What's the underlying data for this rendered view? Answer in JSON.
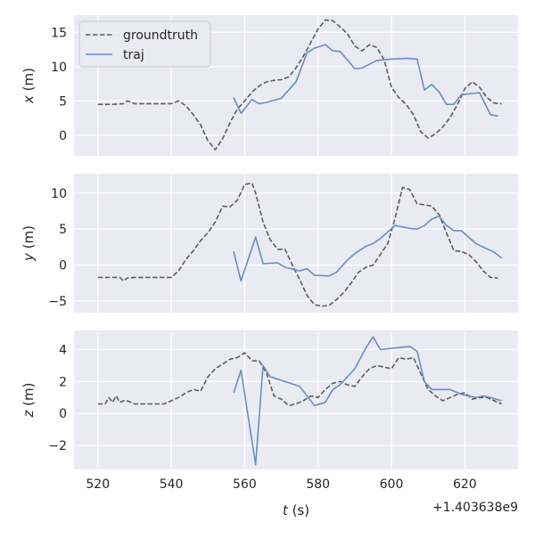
{
  "chart_data": [
    {
      "type": "line",
      "ylabel": "x (m)",
      "ylabel_var": "x",
      "ylabel_unit": " (m)",
      "ylim": [
        -3,
        17.5
      ],
      "yticks": [
        0,
        5,
        10,
        15
      ],
      "ytick_labels": [
        "0",
        "5",
        "10",
        "15"
      ],
      "legend": {
        "placement": "top-left",
        "entries": [
          "groundtruth",
          "traj"
        ]
      },
      "series": [
        {
          "name": "groundtruth",
          "style": "dashed",
          "color": "#5c5c5c",
          "x": [
            520,
            524,
            527,
            528,
            530,
            534,
            538,
            540,
            542,
            544,
            546,
            548,
            550,
            552,
            554,
            556,
            558,
            560,
            562,
            564,
            566,
            568,
            570,
            572,
            574,
            576,
            578,
            580,
            582,
            584,
            586,
            588,
            590,
            592,
            594,
            596,
            598,
            600,
            602,
            604,
            606,
            608,
            610,
            612,
            614,
            616,
            618,
            620,
            622,
            624,
            626,
            628,
            630
          ],
          "y": [
            4.5,
            4.5,
            4.6,
            5.0,
            4.6,
            4.6,
            4.6,
            4.6,
            5.0,
            4.3,
            3.0,
            1.5,
            -0.8,
            -2.1,
            -0.5,
            1.8,
            3.8,
            5.0,
            6.3,
            7.2,
            7.8,
            8.0,
            8.1,
            8.5,
            9.8,
            11.5,
            13.5,
            15.5,
            16.8,
            16.7,
            15.8,
            14.8,
            13.0,
            12.3,
            13.2,
            12.8,
            11.0,
            7.0,
            5.5,
            4.5,
            3.0,
            0.5,
            -0.4,
            0.2,
            1.2,
            2.6,
            4.5,
            6.8,
            7.8,
            7.0,
            5.5,
            4.7,
            4.6
          ]
        },
        {
          "name": "traj",
          "style": "solid",
          "color": "#6a8cc7",
          "x": [
            557,
            559,
            562,
            564,
            566,
            570,
            574,
            577,
            579,
            582,
            584,
            586,
            588,
            590,
            592,
            596,
            598,
            600,
            604,
            607,
            609,
            611,
            613,
            615,
            617,
            619,
            622,
            624,
            627,
            629
          ],
          "y": [
            5.5,
            3.2,
            5.2,
            4.6,
            4.8,
            5.4,
            7.8,
            12.0,
            12.7,
            13.2,
            12.3,
            12.2,
            11.0,
            9.7,
            9.8,
            10.9,
            11.0,
            11.1,
            11.2,
            11.1,
            6.6,
            7.4,
            6.3,
            4.5,
            4.5,
            5.9,
            6.1,
            6.2,
            3.0,
            2.8
          ]
        }
      ]
    },
    {
      "type": "line",
      "ylabel": "y (m)",
      "ylabel_var": "y",
      "ylabel_unit": " (m)",
      "ylim": [
        -6.6,
        12.7
      ],
      "yticks": [
        -5,
        0,
        5,
        10
      ],
      "ytick_labels": [
        "−5",
        "0",
        "5",
        "10"
      ],
      "series": [
        {
          "name": "groundtruth",
          "style": "dashed",
          "color": "#5c5c5c",
          "x": [
            520,
            524,
            526,
            527,
            528,
            530,
            534,
            540,
            542,
            544,
            546,
            548,
            550,
            552,
            554,
            556,
            558,
            560,
            562,
            563,
            565,
            567,
            569,
            571,
            573,
            575,
            577,
            579,
            581,
            583,
            585,
            587,
            589,
            591,
            593,
            595,
            597,
            599,
            601,
            603,
            605,
            607,
            609,
            611,
            613,
            615,
            617,
            619,
            621,
            623,
            625,
            627,
            629
          ],
          "y": [
            -1.7,
            -1.7,
            -1.7,
            -2.2,
            -1.8,
            -1.7,
            -1.7,
            -1.7,
            -0.8,
            0.8,
            2.0,
            3.4,
            4.5,
            6.0,
            8.2,
            8.1,
            9.0,
            11.2,
            11.4,
            10.0,
            6.0,
            3.5,
            2.2,
            2.2,
            0.0,
            -2.0,
            -4.2,
            -5.5,
            -5.7,
            -5.6,
            -4.8,
            -3.8,
            -2.5,
            -1.0,
            -0.3,
            0.0,
            1.5,
            3.0,
            6.5,
            10.8,
            10.5,
            8.5,
            8.4,
            8.2,
            7.0,
            4.5,
            2.0,
            1.9,
            1.5,
            0.5,
            -0.8,
            -1.7,
            -1.8
          ]
        },
        {
          "name": "traj",
          "style": "solid",
          "color": "#6a8cc7",
          "x": [
            557,
            559,
            563,
            565,
            569,
            571,
            575,
            577,
            579,
            583,
            585,
            588,
            590,
            593,
            595,
            597,
            601,
            605,
            607,
            609,
            611,
            613,
            615,
            617,
            619,
            623,
            625,
            628,
            630
          ],
          "y": [
            1.9,
            -2.2,
            3.9,
            0.2,
            0.3,
            -0.3,
            -0.8,
            -0.5,
            -1.4,
            -1.5,
            -1.0,
            0.7,
            1.6,
            2.6,
            3.0,
            3.7,
            5.5,
            5.1,
            5.0,
            5.5,
            6.4,
            6.8,
            5.5,
            4.8,
            4.8,
            3.0,
            2.5,
            1.8,
            1.0
          ]
        }
      ]
    },
    {
      "type": "line",
      "ylabel": "z (m)",
      "ylabel_var": "z",
      "ylabel_unit": " (m)",
      "xlabel": "t (s)",
      "xlabel_var": "t",
      "xlabel_unit": " (s)",
      "x_offset_label": "+1.403638e9",
      "xlim": [
        513.5,
        634.5
      ],
      "xticks": [
        520,
        540,
        560,
        580,
        600,
        620
      ],
      "xtick_labels": [
        "520",
        "540",
        "560",
        "580",
        "600",
        "620"
      ],
      "ylim": [
        -3.5,
        5.2
      ],
      "yticks": [
        -2,
        0,
        2,
        4
      ],
      "ytick_labels": [
        "−2",
        "0",
        "2",
        "4"
      ],
      "series": [
        {
          "name": "groundtruth",
          "style": "dashed",
          "color": "#5c5c5c",
          "x": [
            520,
            522,
            523,
            524,
            525,
            526,
            527,
            528,
            530,
            532,
            534,
            536,
            538,
            540,
            542,
            544,
            546,
            548,
            550,
            552,
            554,
            556,
            558,
            560,
            562,
            564,
            566,
            568,
            570,
            572,
            574,
            576,
            578,
            580,
            582,
            584,
            586,
            588,
            590,
            592,
            594,
            596,
            598,
            600,
            602,
            604,
            606,
            608,
            610,
            612,
            614,
            616,
            618,
            620,
            622,
            624,
            626,
            628,
            630
          ],
          "y": [
            0.6,
            0.6,
            1.0,
            0.7,
            1.1,
            0.7,
            0.8,
            0.8,
            0.6,
            0.6,
            0.6,
            0.6,
            0.6,
            0.8,
            1.0,
            1.3,
            1.5,
            1.4,
            2.3,
            2.8,
            3.1,
            3.4,
            3.5,
            3.8,
            3.3,
            3.3,
            2.5,
            1.1,
            0.9,
            0.5,
            0.6,
            0.8,
            1.1,
            1.0,
            1.5,
            1.9,
            2.0,
            1.8,
            1.7,
            2.3,
            2.8,
            3.0,
            2.9,
            2.8,
            3.5,
            3.4,
            3.5,
            2.5,
            1.5,
            1.1,
            0.8,
            1.0,
            1.2,
            1.3,
            0.9,
            1.0,
            1.0,
            0.8,
            0.6
          ]
        },
        {
          "name": "traj",
          "style": "solid",
          "color": "#6a8cc7",
          "x": [
            557,
            559,
            563,
            565,
            567,
            571,
            575,
            579,
            582,
            584,
            586,
            590,
            593,
            595,
            597,
            605,
            607,
            609,
            611,
            613,
            616,
            619,
            623,
            625,
            627,
            630
          ],
          "y": [
            1.3,
            2.7,
            -3.2,
            3.0,
            2.3,
            2.0,
            1.7,
            0.5,
            0.7,
            1.5,
            1.8,
            2.8,
            4.1,
            4.8,
            4.0,
            4.2,
            3.9,
            2.0,
            1.5,
            1.5,
            1.5,
            1.2,
            1.0,
            1.1,
            1.0,
            0.8
          ]
        }
      ]
    }
  ]
}
